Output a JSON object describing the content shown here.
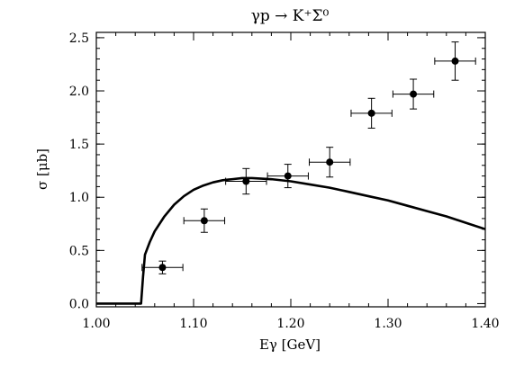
{
  "chart_data": {
    "type": "scatter",
    "title": "γp → K⁺Σ⁰",
    "xlabel": "Eγ [GeV]",
    "ylabel": "σ [μb]",
    "xlim": [
      1.0,
      1.4
    ],
    "ylim": [
      -0.03,
      2.55
    ],
    "x_ticks": [
      1.0,
      1.1,
      1.2,
      1.3,
      1.4
    ],
    "x_tick_labels": [
      "1.00",
      "1.10",
      "1.20",
      "1.30",
      "1.40"
    ],
    "y_ticks": [
      0.0,
      0.5,
      1.0,
      1.5,
      2.0,
      2.5
    ],
    "y_tick_labels": [
      "0.0",
      "0.5",
      "1.0",
      "1.5",
      "2.0",
      "2.5"
    ],
    "grid": false,
    "series": [
      {
        "kind": "points_with_errors",
        "points": [
          {
            "x": 1.068,
            "y": 0.34,
            "xerr": 0.021,
            "yerr": 0.06
          },
          {
            "x": 1.111,
            "y": 0.78,
            "xerr": 0.021,
            "yerr": 0.11
          },
          {
            "x": 1.154,
            "y": 1.15,
            "xerr": 0.021,
            "yerr": 0.12
          },
          {
            "x": 1.197,
            "y": 1.2,
            "xerr": 0.021,
            "yerr": 0.11
          },
          {
            "x": 1.24,
            "y": 1.33,
            "xerr": 0.021,
            "yerr": 0.14
          },
          {
            "x": 1.283,
            "y": 1.79,
            "xerr": 0.021,
            "yerr": 0.14
          },
          {
            "x": 1.326,
            "y": 1.97,
            "xerr": 0.021,
            "yerr": 0.14
          },
          {
            "x": 1.369,
            "y": 2.28,
            "xerr": 0.021,
            "yerr": 0.18
          }
        ]
      },
      {
        "kind": "line",
        "x": [
          1.0,
          1.046,
          1.048,
          1.05,
          1.055,
          1.06,
          1.07,
          1.08,
          1.09,
          1.1,
          1.11,
          1.12,
          1.13,
          1.14,
          1.15,
          1.16,
          1.17,
          1.18,
          1.2,
          1.22,
          1.24,
          1.26,
          1.28,
          1.3,
          1.32,
          1.34,
          1.36,
          1.38,
          1.4
        ],
        "y": [
          0.0,
          0.0,
          0.25,
          0.46,
          0.58,
          0.68,
          0.82,
          0.93,
          1.01,
          1.07,
          1.11,
          1.14,
          1.16,
          1.17,
          1.18,
          1.18,
          1.175,
          1.17,
          1.15,
          1.12,
          1.09,
          1.05,
          1.01,
          0.97,
          0.92,
          0.87,
          0.82,
          0.76,
          0.7
        ]
      }
    ]
  }
}
